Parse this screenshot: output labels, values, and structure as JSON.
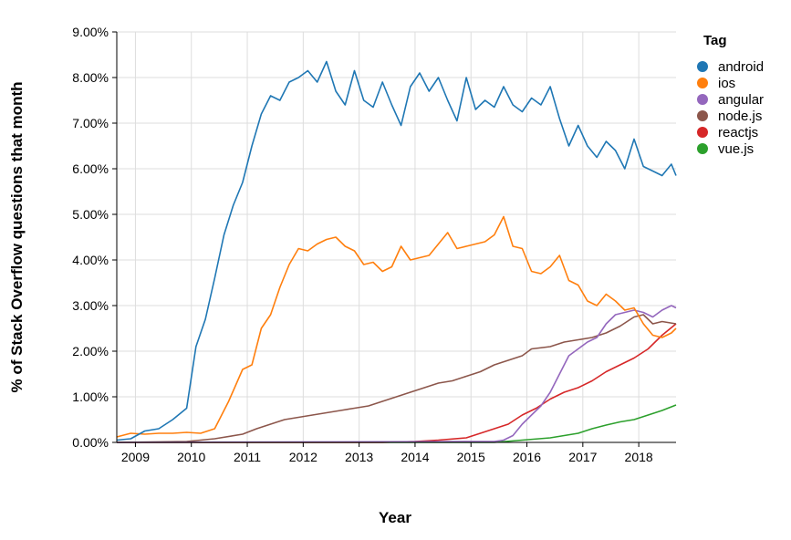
{
  "chart_data": {
    "type": "line",
    "title": "",
    "xlabel": "Year",
    "ylabel": "% of Stack Overflow questions that month",
    "x_ticks": [
      "2009",
      "2010",
      "2011",
      "2012",
      "2013",
      "2014",
      "2015",
      "2016",
      "2017",
      "2018"
    ],
    "y_ticks": [
      "0.00%",
      "1.00%",
      "2.00%",
      "3.00%",
      "4.00%",
      "5.00%",
      "6.00%",
      "7.00%",
      "8.00%",
      "9.00%"
    ],
    "xlim": [
      "2008-09",
      "2018-09"
    ],
    "ylim": [
      0,
      9
    ],
    "grid": true,
    "legend_title": "Tag",
    "legend_position": "right",
    "series": [
      {
        "name": "android",
        "color": "#1f77b4",
        "points": [
          [
            "2008-09",
            0.05
          ],
          [
            "2008-12",
            0.08
          ],
          [
            "2009-03",
            0.25
          ],
          [
            "2009-06",
            0.3
          ],
          [
            "2009-09",
            0.5
          ],
          [
            "2009-12",
            0.75
          ],
          [
            "2010-02",
            2.1
          ],
          [
            "2010-04",
            2.7
          ],
          [
            "2010-06",
            3.6
          ],
          [
            "2010-08",
            4.55
          ],
          [
            "2010-10",
            5.2
          ],
          [
            "2010-12",
            5.7
          ],
          [
            "2011-02",
            6.5
          ],
          [
            "2011-04",
            7.2
          ],
          [
            "2011-06",
            7.6
          ],
          [
            "2011-08",
            7.5
          ],
          [
            "2011-10",
            7.9
          ],
          [
            "2011-12",
            8.0
          ],
          [
            "2012-02",
            8.15
          ],
          [
            "2012-04",
            7.9
          ],
          [
            "2012-06",
            8.35
          ],
          [
            "2012-08",
            7.7
          ],
          [
            "2012-10",
            7.4
          ],
          [
            "2012-12",
            8.15
          ],
          [
            "2013-02",
            7.5
          ],
          [
            "2013-04",
            7.35
          ],
          [
            "2013-06",
            7.9
          ],
          [
            "2013-08",
            7.4
          ],
          [
            "2013-10",
            6.95
          ],
          [
            "2013-12",
            7.8
          ],
          [
            "2014-02",
            8.1
          ],
          [
            "2014-04",
            7.7
          ],
          [
            "2014-06",
            8.0
          ],
          [
            "2014-08",
            7.5
          ],
          [
            "2014-10",
            7.05
          ],
          [
            "2014-12",
            8.0
          ],
          [
            "2015-02",
            7.3
          ],
          [
            "2015-04",
            7.5
          ],
          [
            "2015-06",
            7.35
          ],
          [
            "2015-08",
            7.8
          ],
          [
            "2015-10",
            7.4
          ],
          [
            "2015-12",
            7.25
          ],
          [
            "2016-02",
            7.55
          ],
          [
            "2016-04",
            7.4
          ],
          [
            "2016-06",
            7.8
          ],
          [
            "2016-08",
            7.1
          ],
          [
            "2016-10",
            6.5
          ],
          [
            "2016-12",
            6.95
          ],
          [
            "2017-02",
            6.5
          ],
          [
            "2017-04",
            6.25
          ],
          [
            "2017-06",
            6.6
          ],
          [
            "2017-08",
            6.4
          ],
          [
            "2017-10",
            6.0
          ],
          [
            "2017-12",
            6.65
          ],
          [
            "2018-02",
            6.05
          ],
          [
            "2018-04",
            5.95
          ],
          [
            "2018-06",
            5.85
          ],
          [
            "2018-08",
            6.1
          ],
          [
            "2018-09",
            5.85
          ]
        ]
      },
      {
        "name": "ios",
        "color": "#ff7f0e",
        "points": [
          [
            "2008-09",
            0.12
          ],
          [
            "2008-12",
            0.2
          ],
          [
            "2009-03",
            0.18
          ],
          [
            "2009-06",
            0.2
          ],
          [
            "2009-09",
            0.2
          ],
          [
            "2009-12",
            0.22
          ],
          [
            "2010-03",
            0.2
          ],
          [
            "2010-06",
            0.3
          ],
          [
            "2010-09",
            0.9
          ],
          [
            "2010-12",
            1.6
          ],
          [
            "2011-02",
            1.7
          ],
          [
            "2011-04",
            2.5
          ],
          [
            "2011-06",
            2.8
          ],
          [
            "2011-08",
            3.4
          ],
          [
            "2011-10",
            3.9
          ],
          [
            "2011-12",
            4.25
          ],
          [
            "2012-02",
            4.2
          ],
          [
            "2012-04",
            4.35
          ],
          [
            "2012-06",
            4.45
          ],
          [
            "2012-08",
            4.5
          ],
          [
            "2012-10",
            4.3
          ],
          [
            "2012-12",
            4.2
          ],
          [
            "2013-02",
            3.9
          ],
          [
            "2013-04",
            3.95
          ],
          [
            "2013-06",
            3.75
          ],
          [
            "2013-08",
            3.85
          ],
          [
            "2013-10",
            4.3
          ],
          [
            "2013-12",
            4.0
          ],
          [
            "2014-02",
            4.05
          ],
          [
            "2014-04",
            4.1
          ],
          [
            "2014-06",
            4.35
          ],
          [
            "2014-08",
            4.6
          ],
          [
            "2014-10",
            4.25
          ],
          [
            "2014-12",
            4.3
          ],
          [
            "2015-02",
            4.35
          ],
          [
            "2015-04",
            4.4
          ],
          [
            "2015-06",
            4.55
          ],
          [
            "2015-08",
            4.95
          ],
          [
            "2015-10",
            4.3
          ],
          [
            "2015-12",
            4.25
          ],
          [
            "2016-02",
            3.75
          ],
          [
            "2016-04",
            3.7
          ],
          [
            "2016-06",
            3.85
          ],
          [
            "2016-08",
            4.1
          ],
          [
            "2016-10",
            3.55
          ],
          [
            "2016-12",
            3.45
          ],
          [
            "2017-02",
            3.1
          ],
          [
            "2017-04",
            3.0
          ],
          [
            "2017-06",
            3.25
          ],
          [
            "2017-08",
            3.1
          ],
          [
            "2017-10",
            2.9
          ],
          [
            "2017-12",
            2.95
          ],
          [
            "2018-02",
            2.6
          ],
          [
            "2018-04",
            2.35
          ],
          [
            "2018-06",
            2.3
          ],
          [
            "2018-08",
            2.4
          ],
          [
            "2018-09",
            2.5
          ]
        ]
      },
      {
        "name": "angular",
        "color": "#9467bd",
        "points": [
          [
            "2008-09",
            0.0
          ],
          [
            "2015-06",
            0.02
          ],
          [
            "2015-08",
            0.05
          ],
          [
            "2015-10",
            0.15
          ],
          [
            "2015-12",
            0.4
          ],
          [
            "2016-02",
            0.6
          ],
          [
            "2016-04",
            0.8
          ],
          [
            "2016-06",
            1.1
          ],
          [
            "2016-08",
            1.5
          ],
          [
            "2016-10",
            1.9
          ],
          [
            "2016-12",
            2.05
          ],
          [
            "2017-02",
            2.2
          ],
          [
            "2017-04",
            2.3
          ],
          [
            "2017-06",
            2.6
          ],
          [
            "2017-08",
            2.8
          ],
          [
            "2017-10",
            2.85
          ],
          [
            "2017-12",
            2.9
          ],
          [
            "2018-02",
            2.85
          ],
          [
            "2018-04",
            2.75
          ],
          [
            "2018-06",
            2.9
          ],
          [
            "2018-08",
            3.0
          ],
          [
            "2018-09",
            2.95
          ]
        ]
      },
      {
        "name": "node.js",
        "color": "#8c564b",
        "points": [
          [
            "2008-09",
            0.0
          ],
          [
            "2009-12",
            0.02
          ],
          [
            "2010-06",
            0.08
          ],
          [
            "2010-12",
            0.18
          ],
          [
            "2011-03",
            0.3
          ],
          [
            "2011-06",
            0.4
          ],
          [
            "2011-09",
            0.5
          ],
          [
            "2011-12",
            0.55
          ],
          [
            "2012-03",
            0.6
          ],
          [
            "2012-06",
            0.65
          ],
          [
            "2012-09",
            0.7
          ],
          [
            "2012-12",
            0.75
          ],
          [
            "2013-03",
            0.8
          ],
          [
            "2013-06",
            0.9
          ],
          [
            "2013-09",
            1.0
          ],
          [
            "2013-12",
            1.1
          ],
          [
            "2014-03",
            1.2
          ],
          [
            "2014-06",
            1.3
          ],
          [
            "2014-09",
            1.35
          ],
          [
            "2014-12",
            1.45
          ],
          [
            "2015-03",
            1.55
          ],
          [
            "2015-06",
            1.7
          ],
          [
            "2015-09",
            1.8
          ],
          [
            "2015-12",
            1.9
          ],
          [
            "2016-02",
            2.05
          ],
          [
            "2016-06",
            2.1
          ],
          [
            "2016-09",
            2.2
          ],
          [
            "2016-12",
            2.25
          ],
          [
            "2017-03",
            2.3
          ],
          [
            "2017-06",
            2.4
          ],
          [
            "2017-09",
            2.55
          ],
          [
            "2017-12",
            2.75
          ],
          [
            "2018-02",
            2.8
          ],
          [
            "2018-04",
            2.6
          ],
          [
            "2018-06",
            2.65
          ],
          [
            "2018-09",
            2.6
          ]
        ]
      },
      {
        "name": "reactjs",
        "color": "#d62728",
        "points": [
          [
            "2008-09",
            0.0
          ],
          [
            "2013-06",
            0.0
          ],
          [
            "2014-01",
            0.02
          ],
          [
            "2014-06",
            0.05
          ],
          [
            "2014-12",
            0.1
          ],
          [
            "2015-03",
            0.2
          ],
          [
            "2015-06",
            0.3
          ],
          [
            "2015-09",
            0.4
          ],
          [
            "2015-12",
            0.6
          ],
          [
            "2016-03",
            0.75
          ],
          [
            "2016-06",
            0.95
          ],
          [
            "2016-09",
            1.1
          ],
          [
            "2016-12",
            1.2
          ],
          [
            "2017-03",
            1.35
          ],
          [
            "2017-06",
            1.55
          ],
          [
            "2017-09",
            1.7
          ],
          [
            "2017-12",
            1.85
          ],
          [
            "2018-03",
            2.05
          ],
          [
            "2018-06",
            2.35
          ],
          [
            "2018-09",
            2.6
          ]
        ]
      },
      {
        "name": "vue.js",
        "color": "#2ca02c",
        "points": [
          [
            "2008-09",
            0.0
          ],
          [
            "2015-06",
            0.0
          ],
          [
            "2015-12",
            0.05
          ],
          [
            "2016-06",
            0.1
          ],
          [
            "2016-12",
            0.2
          ],
          [
            "2017-03",
            0.3
          ],
          [
            "2017-06",
            0.38
          ],
          [
            "2017-09",
            0.45
          ],
          [
            "2017-12",
            0.5
          ],
          [
            "2018-03",
            0.6
          ],
          [
            "2018-06",
            0.7
          ],
          [
            "2018-09",
            0.82
          ]
        ]
      }
    ]
  }
}
